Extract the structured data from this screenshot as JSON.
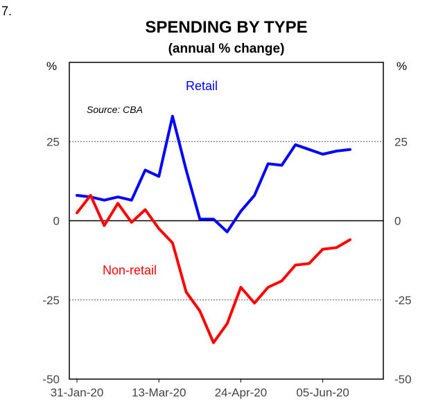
{
  "figure_number": "7.",
  "chart_data": {
    "type": "line",
    "title": "SPENDING BY TYPE",
    "subtitle": "(annual % change)",
    "unit_left": "%",
    "unit_right": "%",
    "source": "Source: CBA",
    "ylim": [
      -50,
      50
    ],
    "yticks": [
      -50,
      -25,
      0,
      25
    ],
    "ytick_labels": [
      "-50",
      "-25",
      "0",
      "25"
    ],
    "reference_lines": [
      -25,
      0,
      25
    ],
    "x": [
      "31-Jan-20",
      "07-Feb-20",
      "14-Feb-20",
      "21-Feb-20",
      "28-Feb-20",
      "06-Mar-20",
      "13-Mar-20",
      "20-Mar-20",
      "27-Mar-20",
      "03-Apr-20",
      "10-Apr-20",
      "17-Apr-20",
      "24-Apr-20",
      "01-May-20",
      "08-May-20",
      "15-May-20",
      "22-May-20",
      "29-May-20",
      "05-Jun-20",
      "12-Jun-20",
      "19-Jun-20"
    ],
    "xtick_labels": [
      "31-Jan-20",
      "13-Mar-20",
      "24-Apr-20",
      "05-Jun-20"
    ],
    "xtick_indices": [
      0,
      6,
      12,
      18
    ],
    "series": [
      {
        "name": "Retail",
        "color": "#0000ff",
        "values": [
          8,
          7.5,
          6.5,
          7.5,
          6.5,
          16,
          14,
          33,
          16,
          0.5,
          0.5,
          -3.5,
          3,
          8,
          18,
          17.5,
          24,
          22.5,
          21,
          22,
          22.5
        ]
      },
      {
        "name": "Non-retail",
        "color": "#ff0000",
        "values": [
          2.5,
          8,
          -1.5,
          5.5,
          -0.5,
          3.5,
          -2.5,
          -7,
          -22.5,
          -28.5,
          -38.5,
          -32.5,
          -21,
          -26,
          -21,
          -19,
          -14,
          -13.5,
          -9,
          -8.5,
          -6
        ]
      }
    ]
  }
}
